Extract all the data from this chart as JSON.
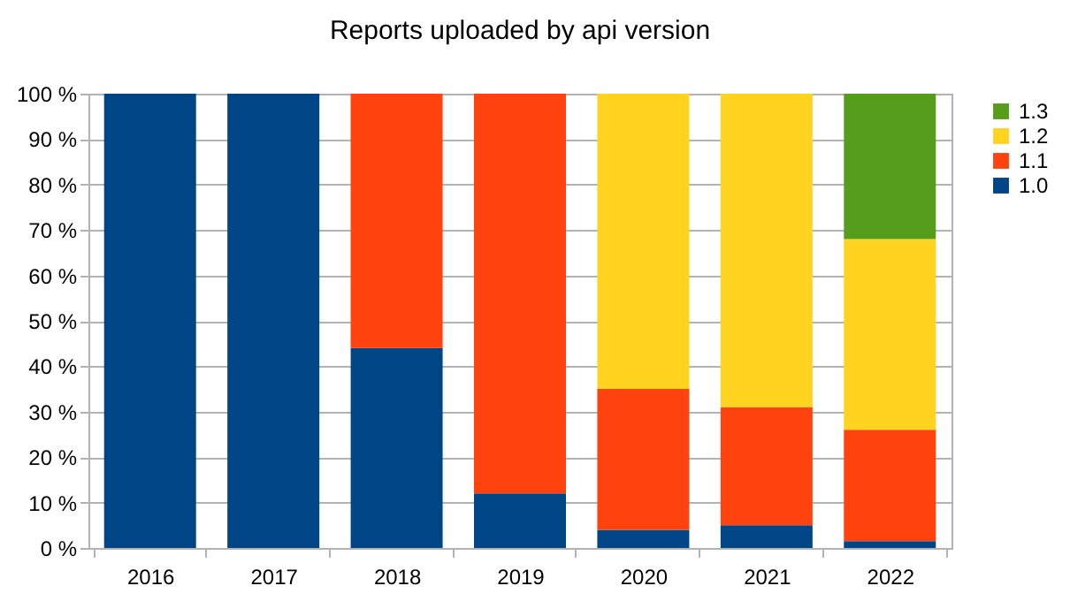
{
  "chart_data": {
    "type": "bar",
    "title": "Reports uploaded by api version",
    "stacked": true,
    "categories": [
      "2016",
      "2017",
      "2018",
      "2019",
      "2020",
      "2021",
      "2022"
    ],
    "series": [
      {
        "name": "1.0",
        "color": "#004586",
        "values": [
          100,
          100,
          44,
          12,
          4,
          5,
          1.5
        ]
      },
      {
        "name": "1.1",
        "color": "#ff420e",
        "values": [
          null,
          null,
          56,
          88,
          31,
          26,
          24.5
        ]
      },
      {
        "name": "1.2",
        "color": "#ffd320",
        "values": [
          null,
          null,
          null,
          null,
          65,
          69,
          42
        ]
      },
      {
        "name": "1.3",
        "color": "#579d1c",
        "values": [
          null,
          null,
          null,
          null,
          null,
          null,
          32
        ]
      }
    ],
    "ylim": [
      0,
      100
    ],
    "yticks": [
      {
        "value": 0,
        "label": "0 %"
      },
      {
        "value": 10,
        "label": "10 %"
      },
      {
        "value": 20,
        "label": "20 %"
      },
      {
        "value": 30,
        "label": "30 %"
      },
      {
        "value": 40,
        "label": "40 %"
      },
      {
        "value": 50,
        "label": "50 %"
      },
      {
        "value": 60,
        "label": "60 %"
      },
      {
        "value": 70,
        "label": "70 %"
      },
      {
        "value": 80,
        "label": "80 %"
      },
      {
        "value": 90,
        "label": "90 %"
      },
      {
        "value": 100,
        "label": "100 %"
      }
    ],
    "grid": "y",
    "legend": "right"
  }
}
